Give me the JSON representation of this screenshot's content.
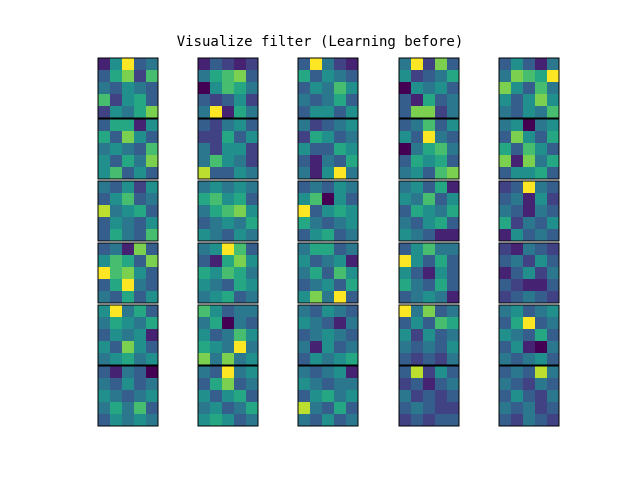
{
  "chart_data": {
    "type": "heatmap",
    "title": "Visualize filter (Learning before)",
    "colormap": "viridis",
    "rows": 6,
    "cols": 5,
    "filter_size": 5,
    "value_range": [
      0,
      1
    ],
    "axes_ticks": false,
    "filters": [
      [
        [
          0.1,
          0.5,
          1.0,
          0.3,
          0.4
        ],
        [
          0.3,
          0.6,
          0.8,
          0.2,
          0.7
        ],
        [
          0.4,
          0.3,
          0.5,
          0.4,
          0.3
        ],
        [
          0.7,
          0.2,
          0.5,
          0.6,
          0.3
        ],
        [
          0.2,
          0.5,
          0.4,
          0.6,
          0.8
        ]
      ],
      [
        [
          0.1,
          0.3,
          0.2,
          0.1,
          0.2
        ],
        [
          0.4,
          0.6,
          0.7,
          0.8,
          0.3
        ],
        [
          0.0,
          0.5,
          0.7,
          0.6,
          0.4
        ],
        [
          0.3,
          0.2,
          0.3,
          0.5,
          0.2
        ],
        [
          0.4,
          1.0,
          0.1,
          0.6,
          0.4
        ]
      ],
      [
        [
          0.3,
          1.0,
          0.4,
          0.2,
          0.1
        ],
        [
          0.6,
          0.3,
          0.5,
          0.4,
          0.3
        ],
        [
          0.3,
          0.5,
          0.4,
          0.7,
          0.5
        ],
        [
          0.4,
          0.3,
          0.4,
          0.6,
          0.3
        ],
        [
          0.3,
          0.5,
          0.5,
          0.3,
          0.5
        ]
      ],
      [
        [
          0.4,
          1.0,
          0.2,
          0.8,
          0.3
        ],
        [
          0.5,
          0.2,
          0.3,
          0.4,
          0.6
        ],
        [
          0.0,
          0.5,
          0.4,
          0.5,
          0.3
        ],
        [
          0.3,
          0.1,
          0.6,
          0.3,
          0.4
        ],
        [
          0.3,
          0.8,
          0.8,
          0.2,
          0.4
        ]
      ],
      [
        [
          0.3,
          0.5,
          0.3,
          0.1,
          0.4
        ],
        [
          0.4,
          0.8,
          0.7,
          0.6,
          1.0
        ],
        [
          0.8,
          0.5,
          0.3,
          0.7,
          0.4
        ],
        [
          0.5,
          0.3,
          0.5,
          0.8,
          0.5
        ],
        [
          0.4,
          0.3,
          0.5,
          0.4,
          0.7
        ]
      ],
      [
        [
          0.3,
          0.6,
          0.6,
          0.1,
          0.5
        ],
        [
          0.6,
          0.3,
          0.8,
          0.5,
          0.3
        ],
        [
          0.4,
          0.5,
          0.4,
          0.3,
          0.7
        ],
        [
          0.5,
          0.3,
          0.6,
          0.4,
          0.8
        ],
        [
          0.5,
          0.7,
          0.3,
          0.5,
          0.3
        ]
      ],
      [
        [
          0.3,
          0.2,
          0.4,
          0.5,
          0.3
        ],
        [
          0.2,
          0.2,
          0.6,
          0.3,
          0.5
        ],
        [
          0.4,
          0.2,
          0.5,
          0.5,
          0.2
        ],
        [
          0.4,
          0.7,
          0.5,
          0.4,
          0.2
        ],
        [
          0.9,
          0.3,
          0.3,
          0.5,
          0.4
        ]
      ],
      [
        [
          0.4,
          0.2,
          0.3,
          0.4,
          0.5
        ],
        [
          0.2,
          0.6,
          0.5,
          0.3,
          0.4
        ],
        [
          0.5,
          0.3,
          0.3,
          0.6,
          0.5
        ],
        [
          0.3,
          0.1,
          0.4,
          0.3,
          0.6
        ],
        [
          0.4,
          0.1,
          0.5,
          1.0,
          0.4
        ]
      ],
      [
        [
          0.3,
          0.4,
          0.7,
          0.3,
          0.5
        ],
        [
          0.5,
          0.3,
          1.0,
          0.4,
          0.3
        ],
        [
          0.0,
          0.4,
          0.6,
          0.7,
          0.4
        ],
        [
          0.3,
          0.6,
          0.5,
          0.6,
          0.3
        ],
        [
          0.4,
          0.5,
          0.3,
          0.7,
          0.8
        ]
      ],
      [
        [
          0.4,
          0.5,
          0.0,
          0.4,
          0.5
        ],
        [
          0.3,
          0.8,
          0.5,
          0.3,
          0.6
        ],
        [
          0.6,
          0.3,
          0.7,
          0.5,
          0.3
        ],
        [
          0.8,
          0.1,
          0.8,
          0.4,
          0.6
        ],
        [
          0.3,
          0.5,
          0.5,
          0.6,
          0.3
        ]
      ],
      [
        [
          0.4,
          0.3,
          0.5,
          0.2,
          0.5
        ],
        [
          0.3,
          0.5,
          0.7,
          0.3,
          0.4
        ],
        [
          0.9,
          0.4,
          0.5,
          0.6,
          0.3
        ],
        [
          0.3,
          0.5,
          0.4,
          0.3,
          0.5
        ],
        [
          0.3,
          0.6,
          0.4,
          0.3,
          0.7
        ]
      ],
      [
        [
          0.4,
          0.5,
          0.4,
          0.5,
          0.4
        ],
        [
          0.6,
          0.7,
          0.5,
          0.6,
          0.3
        ],
        [
          0.4,
          0.6,
          0.7,
          0.8,
          0.5
        ],
        [
          0.3,
          0.4,
          0.5,
          0.4,
          0.6
        ],
        [
          0.5,
          0.4,
          0.3,
          0.5,
          0.4
        ]
      ],
      [
        [
          0.3,
          0.4,
          0.3,
          0.5,
          0.4
        ],
        [
          0.5,
          0.7,
          0.0,
          0.5,
          0.3
        ],
        [
          1.0,
          0.3,
          0.5,
          0.6,
          0.5
        ],
        [
          0.6,
          0.4,
          0.3,
          0.4,
          0.5
        ],
        [
          0.3,
          0.5,
          0.6,
          0.3,
          0.4
        ]
      ],
      [
        [
          0.4,
          0.5,
          0.3,
          0.6,
          0.1
        ],
        [
          0.5,
          0.4,
          0.7,
          0.3,
          0.5
        ],
        [
          0.3,
          0.6,
          0.5,
          0.4,
          0.6
        ],
        [
          0.4,
          0.3,
          0.5,
          0.6,
          0.3
        ],
        [
          0.5,
          0.4,
          0.3,
          0.1,
          0.1
        ]
      ],
      [
        [
          0.2,
          0.3,
          1.0,
          0.4,
          0.3
        ],
        [
          0.3,
          0.4,
          0.1,
          0.5,
          0.2
        ],
        [
          0.4,
          0.3,
          0.1,
          0.4,
          0.3
        ],
        [
          0.6,
          0.2,
          0.4,
          0.3,
          0.5
        ],
        [
          0.1,
          0.5,
          0.3,
          0.4,
          0.3
        ]
      ],
      [
        [
          0.3,
          0.4,
          0.1,
          0.8,
          0.3
        ],
        [
          0.5,
          0.7,
          0.6,
          0.3,
          0.8
        ],
        [
          1.0,
          0.7,
          0.8,
          0.5,
          0.3
        ],
        [
          0.3,
          0.6,
          1.0,
          0.4,
          0.3
        ],
        [
          0.4,
          0.3,
          0.6,
          0.3,
          0.5
        ]
      ],
      [
        [
          0.4,
          0.5,
          1.0,
          0.7,
          0.3
        ],
        [
          0.3,
          0.1,
          0.6,
          0.8,
          0.5
        ],
        [
          0.6,
          0.5,
          0.7,
          0.6,
          0.4
        ],
        [
          0.5,
          0.4,
          0.3,
          0.6,
          0.5
        ],
        [
          0.4,
          0.5,
          0.6,
          0.3,
          0.4
        ]
      ],
      [
        [
          0.4,
          0.6,
          0.6,
          0.3,
          0.4
        ],
        [
          0.5,
          0.3,
          0.4,
          0.5,
          0.1
        ],
        [
          0.4,
          0.6,
          0.3,
          0.7,
          0.5
        ],
        [
          0.3,
          0.4,
          0.5,
          0.3,
          0.6
        ],
        [
          0.5,
          0.8,
          0.4,
          1.0,
          0.3
        ]
      ],
      [
        [
          0.3,
          0.5,
          0.7,
          0.4,
          0.4
        ],
        [
          1.0,
          0.5,
          0.3,
          0.6,
          0.3
        ],
        [
          0.5,
          0.3,
          0.1,
          0.5,
          0.3
        ],
        [
          0.6,
          0.4,
          0.3,
          0.6,
          0.3
        ],
        [
          0.3,
          0.4,
          0.5,
          0.4,
          0.1
        ]
      ],
      [
        [
          0.2,
          0.1,
          0.4,
          0.3,
          0.2
        ],
        [
          0.3,
          0.4,
          0.2,
          0.5,
          0.3
        ],
        [
          0.1,
          0.3,
          0.5,
          0.2,
          0.4
        ],
        [
          0.3,
          0.2,
          0.1,
          0.1,
          0.3
        ],
        [
          0.2,
          0.3,
          0.4,
          0.3,
          0.2
        ]
      ],
      [
        [
          0.5,
          1.0,
          0.4,
          0.6,
          0.3
        ],
        [
          0.4,
          0.6,
          0.5,
          0.4,
          0.6
        ],
        [
          0.3,
          0.5,
          0.4,
          0.5,
          0.1
        ],
        [
          0.5,
          0.3,
          0.8,
          0.5,
          0.3
        ],
        [
          0.4,
          0.5,
          0.6,
          0.4,
          0.5
        ]
      ],
      [
        [
          0.7,
          0.5,
          0.3,
          0.4,
          0.4
        ],
        [
          0.4,
          0.6,
          0.0,
          0.4,
          0.3
        ],
        [
          0.5,
          0.3,
          0.4,
          0.7,
          0.5
        ],
        [
          0.6,
          0.5,
          0.4,
          1.0,
          0.4
        ],
        [
          0.8,
          0.4,
          0.8,
          0.4,
          0.5
        ]
      ],
      [
        [
          0.4,
          0.3,
          0.5,
          0.4,
          0.3
        ],
        [
          0.5,
          0.4,
          0.3,
          0.1,
          0.4
        ],
        [
          0.3,
          0.4,
          0.5,
          0.4,
          0.3
        ],
        [
          0.4,
          0.1,
          0.5,
          0.3,
          0.4
        ],
        [
          0.3,
          0.5,
          0.4,
          0.5,
          0.6
        ]
      ],
      [
        [
          1.0,
          0.4,
          0.8,
          0.3,
          0.4
        ],
        [
          0.3,
          0.5,
          0.3,
          0.7,
          0.6
        ],
        [
          0.5,
          0.2,
          0.5,
          0.3,
          0.4
        ],
        [
          0.4,
          0.3,
          0.4,
          0.3,
          0.5
        ],
        [
          0.3,
          0.2,
          0.3,
          0.2,
          0.4
        ]
      ],
      [
        [
          0.4,
          0.5,
          0.3,
          0.4,
          0.5
        ],
        [
          0.3,
          0.6,
          1.0,
          0.3,
          0.4
        ],
        [
          0.5,
          0.4,
          0.3,
          0.6,
          0.3
        ],
        [
          0.3,
          0.5,
          0.1,
          0.0,
          0.4
        ],
        [
          0.4,
          0.3,
          0.4,
          0.5,
          0.3
        ]
      ],
      [
        [
          0.3,
          0.1,
          0.4,
          0.3,
          0.0
        ],
        [
          0.4,
          0.3,
          0.5,
          0.3,
          0.4
        ],
        [
          0.5,
          0.4,
          0.3,
          0.4,
          0.5
        ],
        [
          0.4,
          0.6,
          0.4,
          0.7,
          0.3
        ],
        [
          0.3,
          0.5,
          0.4,
          0.5,
          0.4
        ]
      ],
      [
        [
          0.4,
          0.3,
          1.0,
          0.4,
          0.5
        ],
        [
          0.3,
          0.6,
          0.8,
          0.3,
          0.4
        ],
        [
          0.5,
          0.3,
          0.5,
          0.6,
          0.3
        ],
        [
          0.4,
          0.5,
          0.3,
          0.4,
          0.6
        ],
        [
          0.5,
          0.6,
          0.5,
          0.3,
          0.4
        ]
      ],
      [
        [
          0.4,
          0.3,
          0.4,
          0.5,
          0.1
        ],
        [
          0.5,
          0.4,
          0.3,
          0.4,
          0.4
        ],
        [
          0.3,
          0.5,
          0.6,
          0.4,
          0.5
        ],
        [
          0.9,
          0.4,
          0.3,
          0.6,
          0.3
        ],
        [
          0.4,
          0.3,
          0.5,
          0.3,
          0.4
        ]
      ],
      [
        [
          0.3,
          0.9,
          0.2,
          0.5,
          0.3
        ],
        [
          0.2,
          0.3,
          0.1,
          0.3,
          0.4
        ],
        [
          0.4,
          0.2,
          0.3,
          0.2,
          0.3
        ],
        [
          0.3,
          0.4,
          0.3,
          0.2,
          0.2
        ],
        [
          0.2,
          0.3,
          0.2,
          0.3,
          0.3
        ]
      ],
      [
        [
          0.3,
          0.4,
          0.3,
          0.9,
          0.4
        ],
        [
          0.4,
          0.3,
          0.2,
          0.4,
          0.3
        ],
        [
          0.3,
          0.5,
          0.3,
          0.2,
          0.4
        ],
        [
          0.4,
          0.3,
          0.4,
          0.2,
          0.3
        ],
        [
          0.3,
          0.2,
          0.4,
          0.3,
          0.2
        ]
      ]
    ]
  }
}
